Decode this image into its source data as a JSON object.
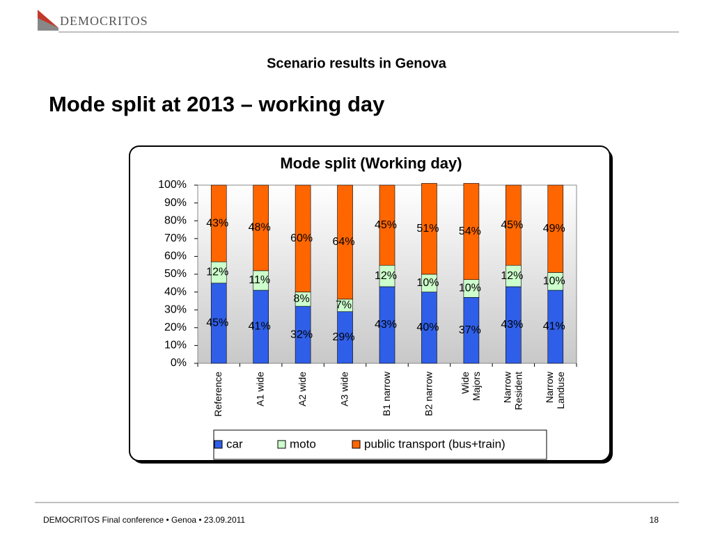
{
  "logo": "DEMOCRITOS",
  "subtitle": "Scenario results in Genova",
  "heading": "Mode split at 2013 – working day",
  "footer": {
    "text": "DEMOCRITOS Final conference • Genoa • 23.09.2011",
    "page": "18"
  },
  "chart_data": {
    "type": "stacked-bar",
    "title": "Mode split (Working day)",
    "categories": [
      "Reference",
      "A1 wide",
      "A2 wide",
      "A3 wide",
      "B1 narrow",
      "B2 narrow",
      "Wide\nMajors",
      "Narrow\nResident",
      "Narrow\nLanduse"
    ],
    "series": [
      {
        "name": "car",
        "color": "#2f5fe8",
        "values": [
          45,
          41,
          32,
          29,
          43,
          40,
          37,
          43,
          41
        ],
        "value_labels": [
          "45%",
          "41%",
          "32%",
          "29%",
          "43%",
          "40%",
          "37%",
          "43%",
          "41%"
        ]
      },
      {
        "name": "moto",
        "color": "#ccffcc",
        "values": [
          12,
          11,
          8,
          7,
          12,
          10,
          10,
          12,
          10
        ],
        "value_labels": [
          "12%",
          "11%",
          "8%",
          "7%",
          "12%",
          "10%",
          "10%",
          "12%",
          "10%"
        ]
      },
      {
        "name": "public transport (bus+train)",
        "color": "#ff6600",
        "values": [
          43,
          48,
          60,
          64,
          45,
          51,
          54,
          45,
          49
        ],
        "value_labels": [
          "43%",
          "48%",
          "60%",
          "64%",
          "45%",
          "51%",
          "54%",
          "45%",
          "49%"
        ]
      }
    ],
    "ylim": [
      0,
      100
    ],
    "yticks": [
      {
        "value": 0,
        "label": "0%"
      },
      {
        "value": 10,
        "label": "10%"
      },
      {
        "value": 20,
        "label": "20%"
      },
      {
        "value": 30,
        "label": "30%"
      },
      {
        "value": 40,
        "label": "40%"
      },
      {
        "value": 50,
        "label": "50%"
      },
      {
        "value": 60,
        "label": "60%"
      },
      {
        "value": 70,
        "label": "70%"
      },
      {
        "value": 80,
        "label": "80%"
      },
      {
        "value": 90,
        "label": "90%"
      },
      {
        "value": 100,
        "label": "100%"
      }
    ]
  }
}
